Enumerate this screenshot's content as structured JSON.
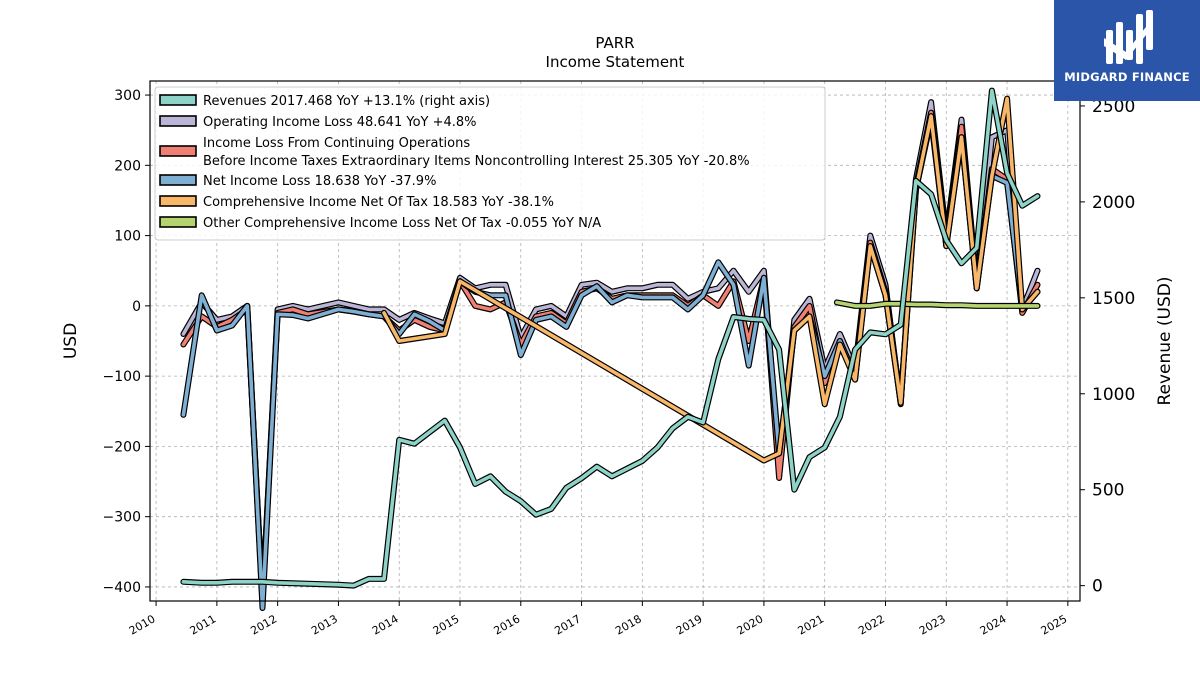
{
  "brand": {
    "name": "MIDGARD FINANCE",
    "color": "#2b55a8"
  },
  "chart_data": {
    "type": "line",
    "title": "PARR",
    "subtitle": "Income Statement",
    "ylabel": "USD",
    "y2label": "Revenue (USD)",
    "ylim": [
      -420,
      320
    ],
    "y2lim": [
      -80,
      2630
    ],
    "yticks": [
      -400,
      -300,
      -200,
      -100,
      0,
      100,
      200,
      300
    ],
    "yticklabels": [
      "−400",
      "−300",
      "−200",
      "−100",
      "0",
      "100",
      "200",
      "300"
    ],
    "y2ticks": [
      0,
      500,
      1000,
      1500,
      2000,
      2500
    ],
    "y2ticklabels": [
      "0",
      "500",
      "1000",
      "1500",
      "2000",
      "2500"
    ],
    "xlim": [
      2009.9,
      2025.2
    ],
    "xticks": [
      2010,
      2011,
      2012,
      2013,
      2014,
      2015,
      2016,
      2017,
      2018,
      2019,
      2020,
      2021,
      2022,
      2023,
      2024,
      2025
    ],
    "xticklabels": [
      "2010",
      "2011",
      "2012",
      "2013",
      "2014",
      "2015",
      "2016",
      "2017",
      "2018",
      "2019",
      "2020",
      "2021",
      "2022",
      "2023",
      "2024",
      "2025"
    ],
    "grid": true,
    "legend_position": "top-left",
    "series": [
      {
        "name": "Operating Income Loss",
        "legend": "Operating Income Loss  48.641 YoY +4.8%",
        "color": "#bcb6d6",
        "axis": "left",
        "points": [
          [
            2010.45,
            -40
          ],
          [
            2010.75,
            5
          ],
          [
            2011.0,
            -20
          ],
          [
            2011.25,
            -15
          ],
          [
            2011.5,
            0
          ],
          [
            2011.75,
            -420
          ],
          [
            2012.0,
            -5
          ],
          [
            2012.25,
            0
          ],
          [
            2012.5,
            -5
          ],
          [
            2013.0,
            5
          ],
          [
            2013.25,
            0
          ],
          [
            2013.5,
            -5
          ],
          [
            2013.75,
            -5
          ],
          [
            2014.0,
            -20
          ],
          [
            2014.25,
            -10
          ],
          [
            2014.5,
            -18
          ],
          [
            2014.75,
            -25
          ],
          [
            2015.0,
            40
          ],
          [
            2015.25,
            25
          ],
          [
            2015.5,
            30
          ],
          [
            2015.75,
            30
          ],
          [
            2016.0,
            -45
          ],
          [
            2016.25,
            -5
          ],
          [
            2016.5,
            0
          ],
          [
            2016.75,
            -15
          ],
          [
            2017.0,
            30
          ],
          [
            2017.25,
            33
          ],
          [
            2017.5,
            20
          ],
          [
            2017.75,
            25
          ],
          [
            2018.0,
            25
          ],
          [
            2018.25,
            30
          ],
          [
            2018.5,
            30
          ],
          [
            2018.75,
            10
          ],
          [
            2019.0,
            20
          ],
          [
            2019.25,
            25
          ],
          [
            2019.5,
            50
          ],
          [
            2019.75,
            20
          ],
          [
            2020.0,
            50
          ],
          [
            2020.25,
            -230
          ],
          [
            2020.5,
            -20
          ],
          [
            2020.75,
            10
          ],
          [
            2021.0,
            -90
          ],
          [
            2021.25,
            -40
          ],
          [
            2021.5,
            -90
          ],
          [
            2021.75,
            100
          ],
          [
            2022.0,
            30
          ],
          [
            2022.25,
            -140
          ],
          [
            2022.5,
            180
          ],
          [
            2022.75,
            290
          ],
          [
            2023.0,
            100
          ],
          [
            2023.25,
            265
          ],
          [
            2023.5,
            30
          ],
          [
            2023.75,
            240
          ],
          [
            2024.0,
            250
          ],
          [
            2024.25,
            -5
          ],
          [
            2024.5,
            50
          ]
        ]
      },
      {
        "name": "Income Loss From Continuing Operations Before Income Taxes Extraordinary Items Noncontrolling Interest",
        "legend": "Income Loss From Continuing Operations",
        "legend2": "Before Income Taxes Extraordinary Items Noncontrolling Interest  25.305 YoY -20.8%",
        "color": "#f08074",
        "axis": "left",
        "points": [
          [
            2010.45,
            -55
          ],
          [
            2010.75,
            -15
          ],
          [
            2011.0,
            -30
          ],
          [
            2011.25,
            -20
          ],
          [
            2011.5,
            -5
          ],
          [
            2011.75,
            -420
          ],
          [
            2012.0,
            -10
          ],
          [
            2012.25,
            -5
          ],
          [
            2012.5,
            -12
          ],
          [
            2013.0,
            -5
          ],
          [
            2013.25,
            -8
          ],
          [
            2013.5,
            -12
          ],
          [
            2013.75,
            -15
          ],
          [
            2014.0,
            -35
          ],
          [
            2014.25,
            -20
          ],
          [
            2014.5,
            -30
          ],
          [
            2014.75,
            -35
          ],
          [
            2015.0,
            35
          ],
          [
            2015.25,
            0
          ],
          [
            2015.5,
            -5
          ],
          [
            2015.75,
            5
          ],
          [
            2016.0,
            -55
          ],
          [
            2016.25,
            -15
          ],
          [
            2016.5,
            -10
          ],
          [
            2016.75,
            -25
          ],
          [
            2017.0,
            20
          ],
          [
            2017.25,
            25
          ],
          [
            2017.5,
            10
          ],
          [
            2017.75,
            15
          ],
          [
            2018.0,
            15
          ],
          [
            2018.25,
            15
          ],
          [
            2018.5,
            15
          ],
          [
            2018.75,
            0
          ],
          [
            2019.0,
            15
          ],
          [
            2019.25,
            0
          ],
          [
            2019.5,
            35
          ],
          [
            2019.75,
            -50
          ],
          [
            2020.0,
            40
          ],
          [
            2020.25,
            -245
          ],
          [
            2020.5,
            -30
          ],
          [
            2020.75,
            0
          ],
          [
            2021.0,
            -110
          ],
          [
            2021.25,
            -50
          ],
          [
            2021.5,
            -105
          ],
          [
            2021.75,
            90
          ],
          [
            2022.0,
            20
          ],
          [
            2022.25,
            -135
          ],
          [
            2022.5,
            170
          ],
          [
            2022.75,
            275
          ],
          [
            2023.0,
            90
          ],
          [
            2023.25,
            255
          ],
          [
            2023.5,
            25
          ],
          [
            2023.75,
            195
          ],
          [
            2024.0,
            180
          ],
          [
            2024.25,
            -10
          ],
          [
            2024.5,
            30
          ]
        ]
      },
      {
        "name": "Net Income Loss",
        "legend": "Net Income Loss  18.638 YoY -37.9%",
        "color": "#7fafd3",
        "axis": "left",
        "points": [
          [
            2010.45,
            -155
          ],
          [
            2010.75,
            15
          ],
          [
            2011.0,
            -35
          ],
          [
            2011.25,
            -28
          ],
          [
            2011.5,
            0
          ],
          [
            2011.75,
            -430
          ],
          [
            2012.0,
            -12
          ],
          [
            2012.25,
            -13
          ],
          [
            2012.5,
            -18
          ],
          [
            2013.0,
            -5
          ],
          [
            2013.25,
            -8
          ],
          [
            2013.5,
            -12
          ],
          [
            2013.75,
            -15
          ],
          [
            2014.0,
            -40
          ],
          [
            2014.25,
            -12
          ],
          [
            2014.5,
            -22
          ],
          [
            2014.75,
            -35
          ],
          [
            2015.0,
            35
          ],
          [
            2015.25,
            20
          ],
          [
            2015.5,
            15
          ],
          [
            2015.75,
            15
          ],
          [
            2016.0,
            -70
          ],
          [
            2016.25,
            -20
          ],
          [
            2016.5,
            -15
          ],
          [
            2016.75,
            -30
          ],
          [
            2017.0,
            15
          ],
          [
            2017.25,
            28
          ],
          [
            2017.5,
            5
          ],
          [
            2017.75,
            15
          ],
          [
            2018.0,
            12
          ],
          [
            2018.25,
            12
          ],
          [
            2018.5,
            12
          ],
          [
            2018.75,
            -5
          ],
          [
            2019.0,
            15
          ],
          [
            2019.25,
            62
          ],
          [
            2019.5,
            30
          ],
          [
            2019.75,
            -85
          ],
          [
            2020.0,
            40
          ],
          [
            2020.25,
            -210
          ],
          [
            2020.5,
            -35
          ],
          [
            2020.75,
            -15
          ],
          [
            2021.0,
            -100
          ],
          [
            2021.25,
            -50
          ],
          [
            2021.5,
            -100
          ],
          [
            2021.75,
            85
          ],
          [
            2022.0,
            15
          ],
          [
            2022.25,
            -138
          ],
          [
            2022.5,
            165
          ],
          [
            2022.75,
            265
          ],
          [
            2023.0,
            85
          ],
          [
            2023.25,
            240
          ],
          [
            2023.5,
            25
          ],
          [
            2023.75,
            185
          ],
          [
            2024.0,
            175
          ],
          [
            2024.25,
            -5
          ],
          [
            2024.5,
            20
          ]
        ]
      },
      {
        "name": "Comprehensive Income Net Of Tax",
        "legend": "Comprehensive Income Net Of Tax  18.583 YoY -38.1%",
        "color": "#f9b76a",
        "axis": "left",
        "points": [
          [
            2013.75,
            -10
          ],
          [
            2014.0,
            -50
          ],
          [
            2014.75,
            -40
          ],
          [
            2015.0,
            35
          ],
          [
            2020.0,
            -220
          ],
          [
            2020.25,
            -210
          ],
          [
            2020.5,
            -35
          ],
          [
            2020.75,
            -15
          ],
          [
            2021.0,
            -140
          ],
          [
            2021.25,
            -55
          ],
          [
            2021.5,
            -105
          ],
          [
            2021.75,
            85
          ],
          [
            2022.0,
            15
          ],
          [
            2022.25,
            -138
          ],
          [
            2022.5,
            165
          ],
          [
            2022.75,
            270
          ],
          [
            2023.0,
            85
          ],
          [
            2023.25,
            240
          ],
          [
            2023.5,
            25
          ],
          [
            2023.75,
            185
          ],
          [
            2024.0,
            295
          ],
          [
            2024.25,
            -5
          ],
          [
            2024.5,
            20
          ]
        ]
      },
      {
        "name": "Other Comprehensive Income Loss Net Of Tax",
        "legend": "Other Comprehensive Income Loss Net Of Tax  -0.055 YoY N/A",
        "color": "#b3d46e",
        "axis": "left",
        "points": [
          [
            2021.2,
            5
          ],
          [
            2021.5,
            0
          ],
          [
            2021.75,
            0
          ],
          [
            2022.0,
            3
          ],
          [
            2022.25,
            3
          ],
          [
            2022.5,
            2
          ],
          [
            2022.75,
            2
          ],
          [
            2023.0,
            1
          ],
          [
            2023.25,
            1
          ],
          [
            2023.5,
            0
          ],
          [
            2023.75,
            0
          ],
          [
            2024.0,
            0
          ],
          [
            2024.25,
            0
          ],
          [
            2024.5,
            0
          ]
        ]
      },
      {
        "name": "Revenues",
        "legend": "Revenues  2017.468 YoY +13.1% (right axis)",
        "color": "#8dd3c7",
        "axis": "right",
        "points": [
          [
            2010.45,
            20
          ],
          [
            2010.75,
            15
          ],
          [
            2011.0,
            15
          ],
          [
            2011.25,
            20
          ],
          [
            2011.5,
            20
          ],
          [
            2011.75,
            20
          ],
          [
            2012.0,
            15
          ],
          [
            2012.5,
            10
          ],
          [
            2013.0,
            5
          ],
          [
            2013.25,
            0
          ],
          [
            2013.5,
            35
          ],
          [
            2013.75,
            35
          ],
          [
            2014.0,
            760
          ],
          [
            2014.25,
            740
          ],
          [
            2014.5,
            800
          ],
          [
            2014.75,
            860
          ],
          [
            2015.0,
            720
          ],
          [
            2015.25,
            530
          ],
          [
            2015.5,
            570
          ],
          [
            2015.75,
            490
          ],
          [
            2016.0,
            440
          ],
          [
            2016.25,
            370
          ],
          [
            2016.5,
            400
          ],
          [
            2016.75,
            510
          ],
          [
            2017.0,
            560
          ],
          [
            2017.25,
            620
          ],
          [
            2017.5,
            570
          ],
          [
            2017.75,
            610
          ],
          [
            2018.0,
            650
          ],
          [
            2018.25,
            720
          ],
          [
            2018.5,
            820
          ],
          [
            2018.75,
            880
          ],
          [
            2019.0,
            850
          ],
          [
            2019.25,
            1180
          ],
          [
            2019.5,
            1400
          ],
          [
            2019.75,
            1390
          ],
          [
            2020.0,
            1385
          ],
          [
            2020.25,
            1230
          ],
          [
            2020.5,
            500
          ],
          [
            2020.75,
            670
          ],
          [
            2021.0,
            720
          ],
          [
            2021.25,
            880
          ],
          [
            2021.5,
            1230
          ],
          [
            2021.75,
            1320
          ],
          [
            2022.0,
            1310
          ],
          [
            2022.25,
            1360
          ],
          [
            2022.5,
            2110
          ],
          [
            2022.75,
            2040
          ],
          [
            2023.0,
            1800
          ],
          [
            2023.25,
            1680
          ],
          [
            2023.5,
            1760
          ],
          [
            2023.75,
            2580
          ],
          [
            2024.0,
            2150
          ],
          [
            2024.25,
            1980
          ],
          [
            2024.5,
            2030
          ]
        ]
      }
    ],
    "legend_order": [
      5,
      0,
      1,
      2,
      3,
      4
    ]
  }
}
